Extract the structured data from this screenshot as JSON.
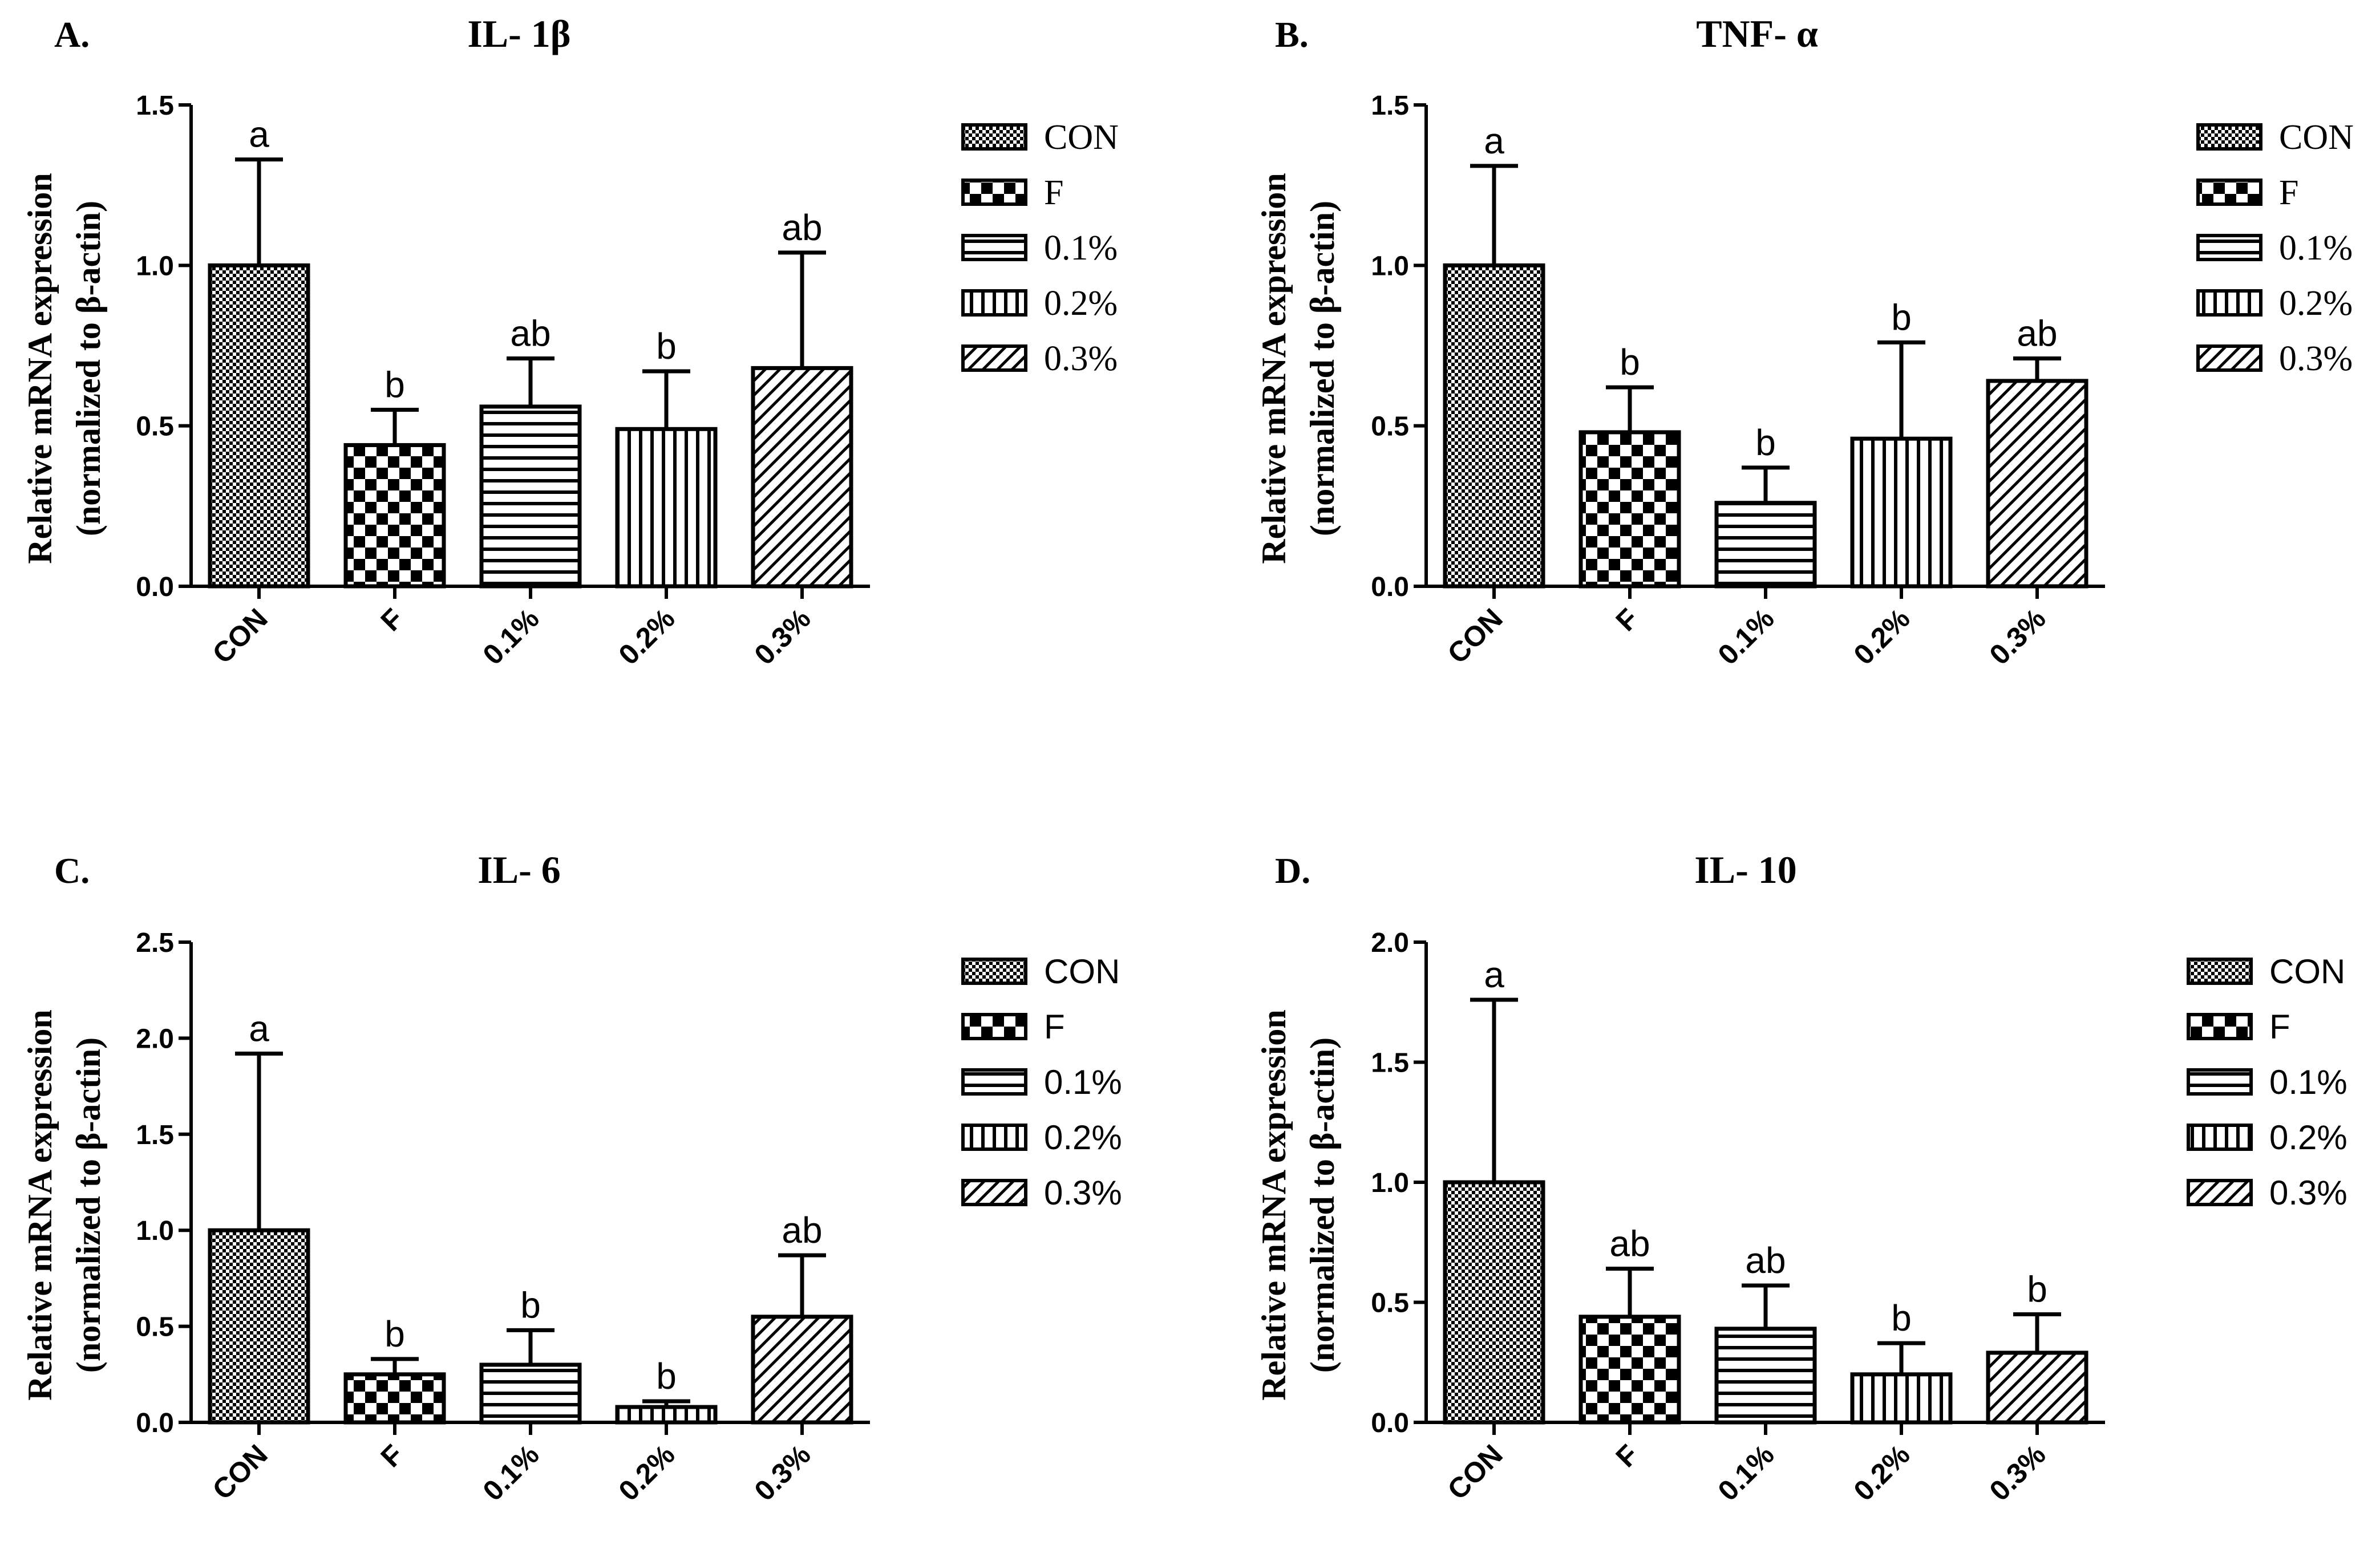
{
  "chart_data": [
    {
      "panel": "A.",
      "title": "IL- 1β",
      "type": "bar",
      "ylabel_lines": [
        "Relative mRNA expression",
        "(normalized to β-actin)"
      ],
      "categories": [
        "CON",
        "F",
        "0.1%",
        "0.2%",
        "0.3%"
      ],
      "values": [
        1.0,
        0.44,
        0.56,
        0.49,
        0.68
      ],
      "errors": [
        0.33,
        0.11,
        0.15,
        0.18,
        0.36
      ],
      "significance": [
        "a",
        "b",
        "ab",
        "b",
        "ab"
      ],
      "ylim": [
        0,
        1.5
      ],
      "yticks": [
        "0.0",
        "0.5",
        "1.0",
        "1.5"
      ],
      "legend": [
        "CON",
        "F",
        "0.1%",
        "0.2%",
        "0.3%"
      ]
    },
    {
      "panel": "B.",
      "title": "TNF- α",
      "type": "bar",
      "ylabel_lines": [
        "Relative mRNA expression",
        "(normalized to β-actin)"
      ],
      "categories": [
        "CON",
        "F",
        "0.1%",
        "0.2%",
        "0.3%"
      ],
      "values": [
        1.0,
        0.48,
        0.26,
        0.46,
        0.64
      ],
      "errors": [
        0.31,
        0.14,
        0.11,
        0.3,
        0.07
      ],
      "significance": [
        "a",
        "b",
        "b",
        "b",
        "ab"
      ],
      "ylim": [
        0,
        1.5
      ],
      "yticks": [
        "0.0",
        "0.5",
        "1.0",
        "1.5"
      ],
      "legend": [
        "CON",
        "F",
        "0.1%",
        "0.2%",
        "0.3%"
      ]
    },
    {
      "panel": "C.",
      "title": "IL- 6",
      "type": "bar",
      "ylabel_lines": [
        "Relative mRNA expression",
        "(normalized to β-actin)"
      ],
      "categories": [
        "CON",
        "F",
        "0.1%",
        "0.2%",
        "0.3%"
      ],
      "values": [
        1.0,
        0.25,
        0.3,
        0.08,
        0.55
      ],
      "errors": [
        0.92,
        0.08,
        0.18,
        0.03,
        0.32
      ],
      "significance": [
        "a",
        "b",
        "b",
        "b",
        "ab"
      ],
      "ylim": [
        0,
        2.5
      ],
      "yticks": [
        "0.0",
        "0.5",
        "1.0",
        "1.5",
        "2.0",
        "2.5"
      ],
      "legend": [
        "CON",
        "F",
        "0.1%",
        "0.2%",
        "0.3%"
      ]
    },
    {
      "panel": "D.",
      "title": "IL- 10",
      "type": "bar",
      "ylabel_lines": [
        "Relative mRNA expression",
        "(normalized to β-actin)"
      ],
      "categories": [
        "CON",
        "F",
        "0.1%",
        "0.2%",
        "0.3%"
      ],
      "values": [
        1.0,
        0.44,
        0.39,
        0.2,
        0.29
      ],
      "errors": [
        0.76,
        0.2,
        0.18,
        0.13,
        0.16
      ],
      "significance": [
        "a",
        "ab",
        "ab",
        "b",
        "b"
      ],
      "ylim": [
        0,
        2.0
      ],
      "yticks": [
        "0.0",
        "0.5",
        "1.0",
        "1.5",
        "2.0"
      ],
      "legend": [
        "CON",
        "F",
        "0.1%",
        "0.2%",
        "0.3%"
      ]
    }
  ]
}
